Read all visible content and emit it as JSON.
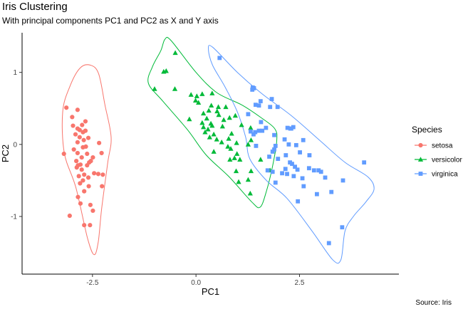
{
  "chart_data": {
    "type": "scatter",
    "title": "Iris Clustering",
    "subtitle": "With principal components PC1 and PC2 as X and Y axis",
    "caption": "Source: Iris",
    "xlabel": "PC1",
    "ylabel": "PC2",
    "xlim": [
      -4.2,
      4.9
    ],
    "ylim": [
      -1.8,
      1.55
    ],
    "xticks": [
      -2.5,
      0.0,
      2.5
    ],
    "xtick_labels": [
      "-2.5",
      "0.0",
      "2.5"
    ],
    "yticks": [
      -1,
      0,
      1
    ],
    "ytick_labels": [
      "-1",
      "0",
      "1"
    ],
    "grid": false,
    "legend": {
      "title": "Species",
      "position": "right"
    },
    "series": [
      {
        "name": "setosa",
        "color": "#F8766D",
        "marker": "circle",
        "points": [
          [
            -3.13,
            0.51
          ],
          [
            -2.86,
            0.48
          ],
          [
            -2.99,
            0.38
          ],
          [
            -2.67,
            0.32
          ],
          [
            -2.75,
            0.27
          ],
          [
            -2.97,
            0.26
          ],
          [
            -2.86,
            0.22
          ],
          [
            -2.81,
            0.2
          ],
          [
            -2.67,
            0.19
          ],
          [
            -2.73,
            0.17
          ],
          [
            -2.91,
            0.14
          ],
          [
            -2.81,
            0.1
          ],
          [
            -2.6,
            0.09
          ],
          [
            -2.71,
            0.06
          ],
          [
            -2.86,
            0.03
          ],
          [
            -2.73,
            -0.04
          ],
          [
            -2.66,
            -0.03
          ],
          [
            -2.34,
            0.02
          ],
          [
            -2.95,
            -0.07
          ],
          [
            -2.28,
            -0.12
          ],
          [
            -2.86,
            -0.12
          ],
          [
            -3.19,
            -0.13
          ],
          [
            -2.63,
            -0.13
          ],
          [
            -2.76,
            -0.18
          ],
          [
            -2.49,
            -0.18
          ],
          [
            -2.54,
            -0.23
          ],
          [
            -2.89,
            -0.23
          ],
          [
            -2.58,
            -0.25
          ],
          [
            -2.79,
            -0.28
          ],
          [
            -2.85,
            -0.29
          ],
          [
            -2.63,
            -0.29
          ],
          [
            -2.88,
            -0.32
          ],
          [
            -2.76,
            -0.35
          ],
          [
            -2.36,
            -0.41
          ],
          [
            -2.46,
            -0.4
          ],
          [
            -2.25,
            -0.42
          ],
          [
            -2.7,
            -0.42
          ],
          [
            -2.83,
            -0.44
          ],
          [
            -2.6,
            -0.46
          ],
          [
            -2.73,
            -0.5
          ],
          [
            -2.8,
            -0.54
          ],
          [
            -2.59,
            -0.58
          ],
          [
            -2.27,
            -0.58
          ],
          [
            -2.7,
            -0.65
          ],
          [
            -2.85,
            -0.73
          ],
          [
            -2.79,
            -0.82
          ],
          [
            -2.55,
            -0.84
          ],
          [
            -2.49,
            -0.92
          ],
          [
            -3.05,
            -0.99
          ],
          [
            -2.56,
            -1.12
          ],
          [
            -2.7,
            -1.12
          ]
        ],
        "hull": [
          [
            -2.55,
            1.1
          ],
          [
            -2.35,
            0.98
          ],
          [
            -2.2,
            0.55
          ],
          [
            -2.05,
            0.1
          ],
          [
            -2.13,
            -0.25
          ],
          [
            -2.28,
            -0.9
          ],
          [
            -2.36,
            -1.35
          ],
          [
            -2.46,
            -1.53
          ],
          [
            -2.62,
            -1.3
          ],
          [
            -2.9,
            -0.6
          ],
          [
            -3.18,
            -0.12
          ],
          [
            -3.22,
            0.45
          ],
          [
            -3.05,
            0.8
          ],
          [
            -2.8,
            1.06
          ]
        ]
      },
      {
        "name": "versicolor",
        "color": "#00BA38",
        "marker": "triangle",
        "points": [
          [
            -0.5,
            1.27
          ],
          [
            -0.78,
            1.01
          ],
          [
            -0.72,
            1.02
          ],
          [
            -1.0,
            0.77
          ],
          [
            -0.51,
            0.77
          ],
          [
            -0.12,
            0.69
          ],
          [
            0.15,
            0.7
          ],
          [
            0.39,
            0.71
          ],
          [
            0.02,
            0.67
          ],
          [
            -0.01,
            0.61
          ],
          [
            0.06,
            0.58
          ],
          [
            0.37,
            0.54
          ],
          [
            0.54,
            0.52
          ],
          [
            0.72,
            0.52
          ],
          [
            0.31,
            0.47
          ],
          [
            0.51,
            0.46
          ],
          [
            0.18,
            0.43
          ],
          [
            0.55,
            0.41
          ],
          [
            0.95,
            0.4
          ],
          [
            0.81,
            0.37
          ],
          [
            -0.16,
            0.35
          ],
          [
            0.26,
            0.36
          ],
          [
            0.67,
            0.34
          ],
          [
            0.36,
            0.29
          ],
          [
            0.64,
            0.25
          ],
          [
            0.15,
            0.3
          ],
          [
            0.39,
            0.26
          ],
          [
            0.18,
            0.24
          ],
          [
            0.29,
            0.21
          ],
          [
            1.1,
            0.27
          ],
          [
            1.32,
            0.23
          ],
          [
            0.22,
            0.17
          ],
          [
            0.43,
            0.14
          ],
          [
            0.86,
            0.15
          ],
          [
            0.79,
            0.08
          ],
          [
            0.5,
            0.07
          ],
          [
            0.33,
            0.1
          ],
          [
            1.33,
            0.06
          ],
          [
            0.62,
            0.03
          ],
          [
            0.98,
            0.02
          ],
          [
            1.26,
            0.0
          ],
          [
            0.77,
            -0.03
          ],
          [
            0.43,
            -0.1
          ],
          [
            0.84,
            -0.06
          ],
          [
            0.99,
            -0.13
          ],
          [
            0.82,
            -0.21
          ],
          [
            1.06,
            -0.21
          ],
          [
            0.93,
            -0.19
          ],
          [
            0.97,
            -0.37
          ],
          [
            1.33,
            -0.37
          ],
          [
            1.26,
            -0.49
          ],
          [
            1.31,
            -0.68
          ],
          [
            1.03,
            -0.52
          ],
          [
            1.56,
            -0.21
          ],
          [
            1.79,
            -0.36
          ]
        ],
        "hull": [
          [
            -0.75,
            1.46
          ],
          [
            -0.6,
            1.44
          ],
          [
            0.0,
            1.0
          ],
          [
            0.5,
            0.72
          ],
          [
            1.1,
            0.55
          ],
          [
            1.55,
            0.38
          ],
          [
            1.9,
            0.22
          ],
          [
            1.95,
            0.05
          ],
          [
            1.85,
            -0.3
          ],
          [
            1.7,
            -0.65
          ],
          [
            1.55,
            -0.87
          ],
          [
            1.35,
            -0.8
          ],
          [
            0.8,
            -0.45
          ],
          [
            0.25,
            -0.15
          ],
          [
            -0.2,
            0.2
          ],
          [
            -0.8,
            0.6
          ],
          [
            -1.15,
            0.85
          ],
          [
            -1.05,
            1.08
          ],
          [
            -0.85,
            1.3
          ]
        ]
      },
      {
        "name": "virginica",
        "color": "#619CFF",
        "marker": "square",
        "points": [
          [
            0.57,
            1.2
          ],
          [
            1.37,
            0.79
          ],
          [
            1.4,
            0.78
          ],
          [
            1.36,
            0.76
          ],
          [
            1.83,
            0.63
          ],
          [
            1.56,
            0.6
          ],
          [
            1.44,
            0.55
          ],
          [
            1.52,
            0.54
          ],
          [
            1.79,
            0.52
          ],
          [
            1.97,
            0.52
          ],
          [
            1.26,
            0.42
          ],
          [
            1.57,
            0.31
          ],
          [
            2.35,
            0.24
          ],
          [
            2.21,
            0.23
          ],
          [
            1.69,
            0.23
          ],
          [
            1.6,
            0.19
          ],
          [
            2.28,
            0.22
          ],
          [
            2.3,
            0.22
          ],
          [
            1.52,
            0.19
          ],
          [
            1.32,
            0.18
          ],
          [
            1.43,
            0.17
          ],
          [
            1.39,
            0.14
          ],
          [
            1.89,
            0.13
          ],
          [
            2.14,
            0.07
          ],
          [
            2.59,
            0.06
          ],
          [
            2.24,
            0.0
          ],
          [
            1.45,
            -0.02
          ],
          [
            1.92,
            -0.02
          ],
          [
            2.42,
            -0.01
          ],
          [
            1.89,
            -0.07
          ],
          [
            1.85,
            -0.1
          ],
          [
            2.51,
            -0.11
          ],
          [
            2.74,
            -0.15
          ],
          [
            2.17,
            -0.15
          ],
          [
            1.77,
            -0.17
          ],
          [
            1.98,
            -0.2
          ],
          [
            2.27,
            -0.25
          ],
          [
            4.06,
            -0.25
          ],
          [
            2.32,
            -0.27
          ],
          [
            2.39,
            -0.31
          ],
          [
            2.73,
            -0.33
          ],
          [
            1.73,
            -0.36
          ],
          [
            1.85,
            -0.38
          ],
          [
            2.16,
            -0.34
          ],
          [
            2.45,
            -0.35
          ],
          [
            2.85,
            -0.36
          ],
          [
            2.96,
            -0.36
          ],
          [
            3.02,
            -0.38
          ],
          [
            2.08,
            -0.4
          ],
          [
            2.2,
            -0.41
          ],
          [
            2.36,
            -0.44
          ],
          [
            2.57,
            -0.47
          ],
          [
            3.12,
            -0.46
          ],
          [
            3.55,
            -0.5
          ],
          [
            1.92,
            -0.53
          ],
          [
            2.6,
            -0.58
          ],
          [
            3.27,
            -0.66
          ],
          [
            2.92,
            -0.69
          ],
          [
            2.46,
            -0.79
          ],
          [
            3.53,
            -1.15
          ],
          [
            3.21,
            -1.37
          ]
        ],
        "hull": [
          [
            0.4,
            1.35
          ],
          [
            1.0,
            1.0
          ],
          [
            1.6,
            0.7
          ],
          [
            2.3,
            0.4
          ],
          [
            3.0,
            0.05
          ],
          [
            3.6,
            -0.25
          ],
          [
            4.15,
            -0.45
          ],
          [
            4.3,
            -0.62
          ],
          [
            4.1,
            -0.8
          ],
          [
            3.8,
            -1.0
          ],
          [
            3.6,
            -1.2
          ],
          [
            3.5,
            -1.6
          ],
          [
            3.3,
            -1.6
          ],
          [
            2.8,
            -1.2
          ],
          [
            2.2,
            -0.75
          ],
          [
            1.7,
            -0.5
          ],
          [
            1.3,
            -0.2
          ],
          [
            1.2,
            0.1
          ],
          [
            1.0,
            0.45
          ],
          [
            0.7,
            0.8
          ],
          [
            0.4,
            1.1
          ],
          [
            0.3,
            1.32
          ]
        ]
      }
    ]
  }
}
